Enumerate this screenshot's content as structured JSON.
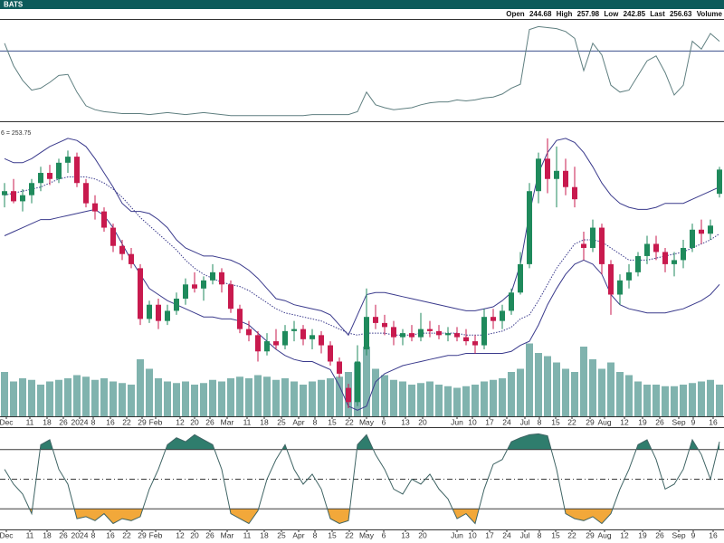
{
  "header": {
    "source": "BATS",
    "labels": [
      "Open",
      "High",
      "Low",
      "Last",
      "Volume"
    ]
  },
  "chart_data": [
    {
      "type": "line",
      "color": "#5f7f80",
      "ylim": [
        0,
        100
      ],
      "hlines": [
        70
      ],
      "hline_color": "#3b4f8c",
      "values": [
        78,
        55,
        40,
        30,
        32,
        38,
        45,
        46,
        28,
        14,
        10,
        8,
        7,
        6,
        6,
        6,
        5,
        6,
        7,
        6,
        5,
        6,
        7,
        6,
        5,
        4,
        4,
        4,
        4,
        4,
        4,
        4,
        4,
        4,
        5,
        5,
        5,
        5,
        5,
        8,
        28,
        15,
        12,
        10,
        11,
        12,
        15,
        17,
        18,
        18,
        20,
        19,
        20,
        22,
        23,
        26,
        32,
        36,
        92,
        95,
        94,
        93,
        90,
        83,
        50,
        78,
        66,
        35,
        28,
        30,
        45,
        60,
        65,
        48,
        25,
        35,
        80,
        72,
        88,
        80
      ]
    },
    {
      "type": "candlestick",
      "annotation": "6 = 253.75",
      "ylim": [
        135,
        280
      ],
      "xlim": [
        -0.5,
        79.5
      ],
      "up_color": "#1f8a5c",
      "down_color": "#c81a4e",
      "open": [
        244,
        246,
        241,
        244,
        250,
        255,
        252,
        260,
        263,
        250,
        240,
        236,
        228,
        219,
        215,
        208,
        183,
        190,
        182,
        187,
        193,
        200,
        198,
        202,
        206,
        200,
        188,
        178,
        175,
        167,
        172,
        170,
        177,
        178,
        173,
        175,
        170,
        162,
        149,
        142,
        168,
        184,
        181,
        179,
        174,
        176,
        174,
        178,
        177,
        175,
        176,
        174,
        172,
        170,
        184,
        182,
        187,
        196,
        210,
        246,
        262,
        252,
        256,
        248,
        220,
        218,
        228,
        210,
        195,
        202,
        206,
        214,
        220,
        216,
        210,
        212,
        218,
        227,
        225,
        244.68
      ],
      "high": [
        250,
        252,
        247,
        252,
        258,
        259,
        262,
        266,
        265,
        252,
        244,
        238,
        230,
        222,
        218,
        210,
        192,
        193,
        190,
        196,
        203,
        206,
        204,
        210,
        208,
        202,
        190,
        182,
        177,
        176,
        178,
        180,
        182,
        180,
        178,
        177,
        172,
        164,
        151,
        170,
        198,
        190,
        185,
        182,
        178,
        180,
        186,
        182,
        180,
        179,
        179,
        178,
        175,
        188,
        188,
        190,
        198,
        216,
        250,
        265,
        272,
        268,
        262,
        258,
        226,
        232,
        230,
        212,
        205,
        210,
        216,
        224,
        224,
        218,
        216,
        222,
        230,
        232,
        232,
        257.98
      ],
      "low": [
        238,
        240,
        236,
        240,
        246,
        249,
        250,
        255,
        248,
        238,
        232,
        226,
        216,
        212,
        208,
        180,
        181,
        178,
        180,
        185,
        190,
        196,
        192,
        200,
        196,
        186,
        176,
        172,
        162,
        165,
        168,
        168,
        172,
        170,
        168,
        166,
        160,
        154,
        139,
        140,
        165,
        178,
        175,
        170,
        170,
        172,
        172,
        174,
        173,
        172,
        172,
        170,
        166,
        168,
        178,
        178,
        185,
        195,
        208,
        240,
        245,
        238,
        244,
        238,
        212,
        216,
        205,
        185,
        190,
        198,
        204,
        210,
        212,
        206,
        204,
        208,
        216,
        220,
        222,
        242.85
      ],
      "close": [
        246,
        241,
        244,
        250,
        255,
        252,
        260,
        263,
        250,
        240,
        236,
        228,
        219,
        215,
        210,
        183,
        190,
        182,
        187,
        193,
        200,
        198,
        202,
        206,
        200,
        188,
        178,
        175,
        167,
        172,
        170,
        177,
        178,
        173,
        175,
        170,
        162,
        156,
        142,
        162,
        184,
        181,
        179,
        174,
        176,
        174,
        178,
        177,
        175,
        176,
        174,
        172,
        170,
        184,
        182,
        187,
        196,
        210,
        246,
        262,
        252,
        256,
        248,
        242,
        218,
        228,
        210,
        195,
        202,
        206,
        214,
        220,
        216,
        210,
        212,
        218,
        227,
        225,
        229,
        256.63
      ],
      "bands": {
        "color": "#3a3a8c",
        "upper": [
          262,
          260,
          260,
          262,
          265,
          268,
          270,
          272,
          271,
          268,
          262,
          255,
          248,
          240,
          236,
          236,
          235,
          232,
          228,
          222,
          218,
          216,
          214,
          214,
          213,
          212,
          210,
          207,
          203,
          198,
          193,
          192,
          190,
          189,
          188,
          187,
          185,
          180,
          175,
          185,
          195,
          196,
          196,
          195,
          194,
          193,
          192,
          191,
          190,
          189,
          188,
          187,
          187,
          188,
          189,
          192,
          196,
          210,
          235,
          255,
          265,
          271,
          272,
          270,
          265,
          258,
          250,
          244,
          240,
          238,
          237,
          237,
          238,
          240,
          240,
          240,
          242,
          244,
          246,
          248
        ],
        "middle": [
          244,
          245,
          246,
          247,
          248,
          250,
          252,
          253,
          253,
          253,
          252,
          250,
          247,
          243,
          238,
          233,
          229,
          225,
          221,
          217,
          212,
          208,
          205,
          203,
          201,
          200,
          199,
          197,
          194,
          191,
          188,
          186,
          185,
          184,
          183,
          182,
          180,
          178,
          176,
          175,
          176,
          176,
          176,
          175,
          175,
          175,
          176,
          176,
          176,
          176,
          176,
          175,
          175,
          175,
          176,
          177,
          179,
          183,
          185,
          192,
          200,
          208,
          214,
          220,
          222,
          222,
          221,
          218,
          215,
          212,
          212,
          212,
          213,
          214,
          215,
          216,
          218,
          220,
          222,
          225
        ],
        "lower": [
          224,
          226,
          228,
          230,
          232,
          232,
          233,
          234,
          235,
          236,
          237,
          234,
          228,
          220,
          212,
          205,
          198,
          195,
          192,
          190,
          188,
          186,
          184,
          184,
          183,
          183,
          182,
          180,
          176,
          172,
          168,
          165,
          163,
          162,
          162,
          160,
          158,
          150,
          140,
          138,
          140,
          152,
          156,
          158,
          160,
          161,
          162,
          163,
          164,
          165,
          165,
          166,
          166,
          166,
          166,
          166,
          167,
          170,
          172,
          180,
          190,
          198,
          205,
          210,
          212,
          210,
          205,
          195,
          190,
          188,
          187,
          186,
          186,
          186,
          187,
          188,
          190,
          192,
          195,
          200
        ]
      },
      "volume": {
        "color": "#6aa6a0",
        "ylim": [
          0,
          400
        ],
        "values": [
          140,
          110,
          120,
          115,
          100,
          110,
          115,
          120,
          130,
          125,
          115,
          120,
          110,
          105,
          100,
          180,
          150,
          120,
          110,
          105,
          110,
          100,
          105,
          115,
          110,
          120,
          125,
          120,
          130,
          125,
          115,
          120,
          110,
          100,
          110,
          115,
          120,
          125,
          140,
          170,
          220,
          150,
          130,
          115,
          110,
          100,
          105,
          110,
          100,
          95,
          90,
          95,
          100,
          110,
          115,
          120,
          140,
          150,
          230,
          200,
          190,
          170,
          150,
          140,
          220,
          180,
          150,
          170,
          140,
          130,
          110,
          100,
          100,
          95,
          95,
          100,
          105,
          110,
          115,
          100
        ]
      },
      "xticks": [
        {
          "value": 0.2,
          "label": "Dec"
        },
        {
          "value": 2.8,
          "label": "11"
        },
        {
          "value": 4.7,
          "label": "18"
        },
        {
          "value": 6.5,
          "label": "26"
        },
        {
          "value": 8.3,
          "label": "2024"
        },
        {
          "value": 9.8,
          "label": "8"
        },
        {
          "value": 11.7,
          "label": "16"
        },
        {
          "value": 13.5,
          "label": "22"
        },
        {
          "value": 15.2,
          "label": "29"
        },
        {
          "value": 16.7,
          "label": "Feb"
        },
        {
          "value": 19.4,
          "label": "12"
        },
        {
          "value": 21,
          "label": "20"
        },
        {
          "value": 22.7,
          "label": "26"
        },
        {
          "value": 24.6,
          "label": "Mar"
        },
        {
          "value": 26.8,
          "label": "11"
        },
        {
          "value": 28.7,
          "label": "18"
        },
        {
          "value": 30.6,
          "label": "25"
        },
        {
          "value": 32.5,
          "label": "Apr"
        },
        {
          "value": 34.3,
          "label": "8"
        },
        {
          "value": 36.2,
          "label": "15"
        },
        {
          "value": 38.1,
          "label": "22"
        },
        {
          "value": 40,
          "label": "May"
        },
        {
          "value": 41.9,
          "label": "6"
        },
        {
          "value": 44.3,
          "label": "13"
        },
        {
          "value": 46.2,
          "label": "20"
        },
        {
          "value": 50,
          "label": "Jun"
        },
        {
          "value": 51.7,
          "label": "10"
        },
        {
          "value": 53.6,
          "label": "17"
        },
        {
          "value": 55.5,
          "label": "24"
        },
        {
          "value": 57.5,
          "label": "Jul"
        },
        {
          "value": 59.1,
          "label": "8"
        },
        {
          "value": 60.9,
          "label": "15"
        },
        {
          "value": 62.7,
          "label": "22"
        },
        {
          "value": 64.7,
          "label": "29"
        },
        {
          "value": 66.3,
          "label": "Aug"
        },
        {
          "value": 68.5,
          "label": "12"
        },
        {
          "value": 70.5,
          "label": "19"
        },
        {
          "value": 72.4,
          "label": "26"
        },
        {
          "value": 74.5,
          "label": "Sep"
        },
        {
          "value": 76.1,
          "label": "9"
        },
        {
          "value": 78.3,
          "label": "16"
        }
      ]
    },
    {
      "type": "line",
      "color": "#3f6464",
      "ylim": [
        0,
        100
      ],
      "hlines": [
        20,
        80
      ],
      "midline": 50,
      "hline_color": "#3a3a3a",
      "fill_above_color": "#2f7d6d",
      "fill_below_color": "#f2a83a",
      "values": [
        60,
        45,
        35,
        15,
        85,
        90,
        60,
        45,
        10,
        12,
        8,
        15,
        5,
        10,
        8,
        12,
        40,
        60,
        85,
        92,
        88,
        95,
        90,
        85,
        60,
        15,
        10,
        5,
        18,
        50,
        70,
        85,
        60,
        45,
        55,
        40,
        10,
        5,
        8,
        85,
        95,
        75,
        60,
        40,
        35,
        50,
        45,
        55,
        40,
        30,
        10,
        15,
        5,
        40,
        65,
        70,
        88,
        92,
        95,
        96,
        94,
        60,
        15,
        10,
        8,
        12,
        5,
        15,
        40,
        60,
        85,
        90,
        70,
        40,
        45,
        60,
        90,
        75,
        50,
        88
      ]
    }
  ]
}
